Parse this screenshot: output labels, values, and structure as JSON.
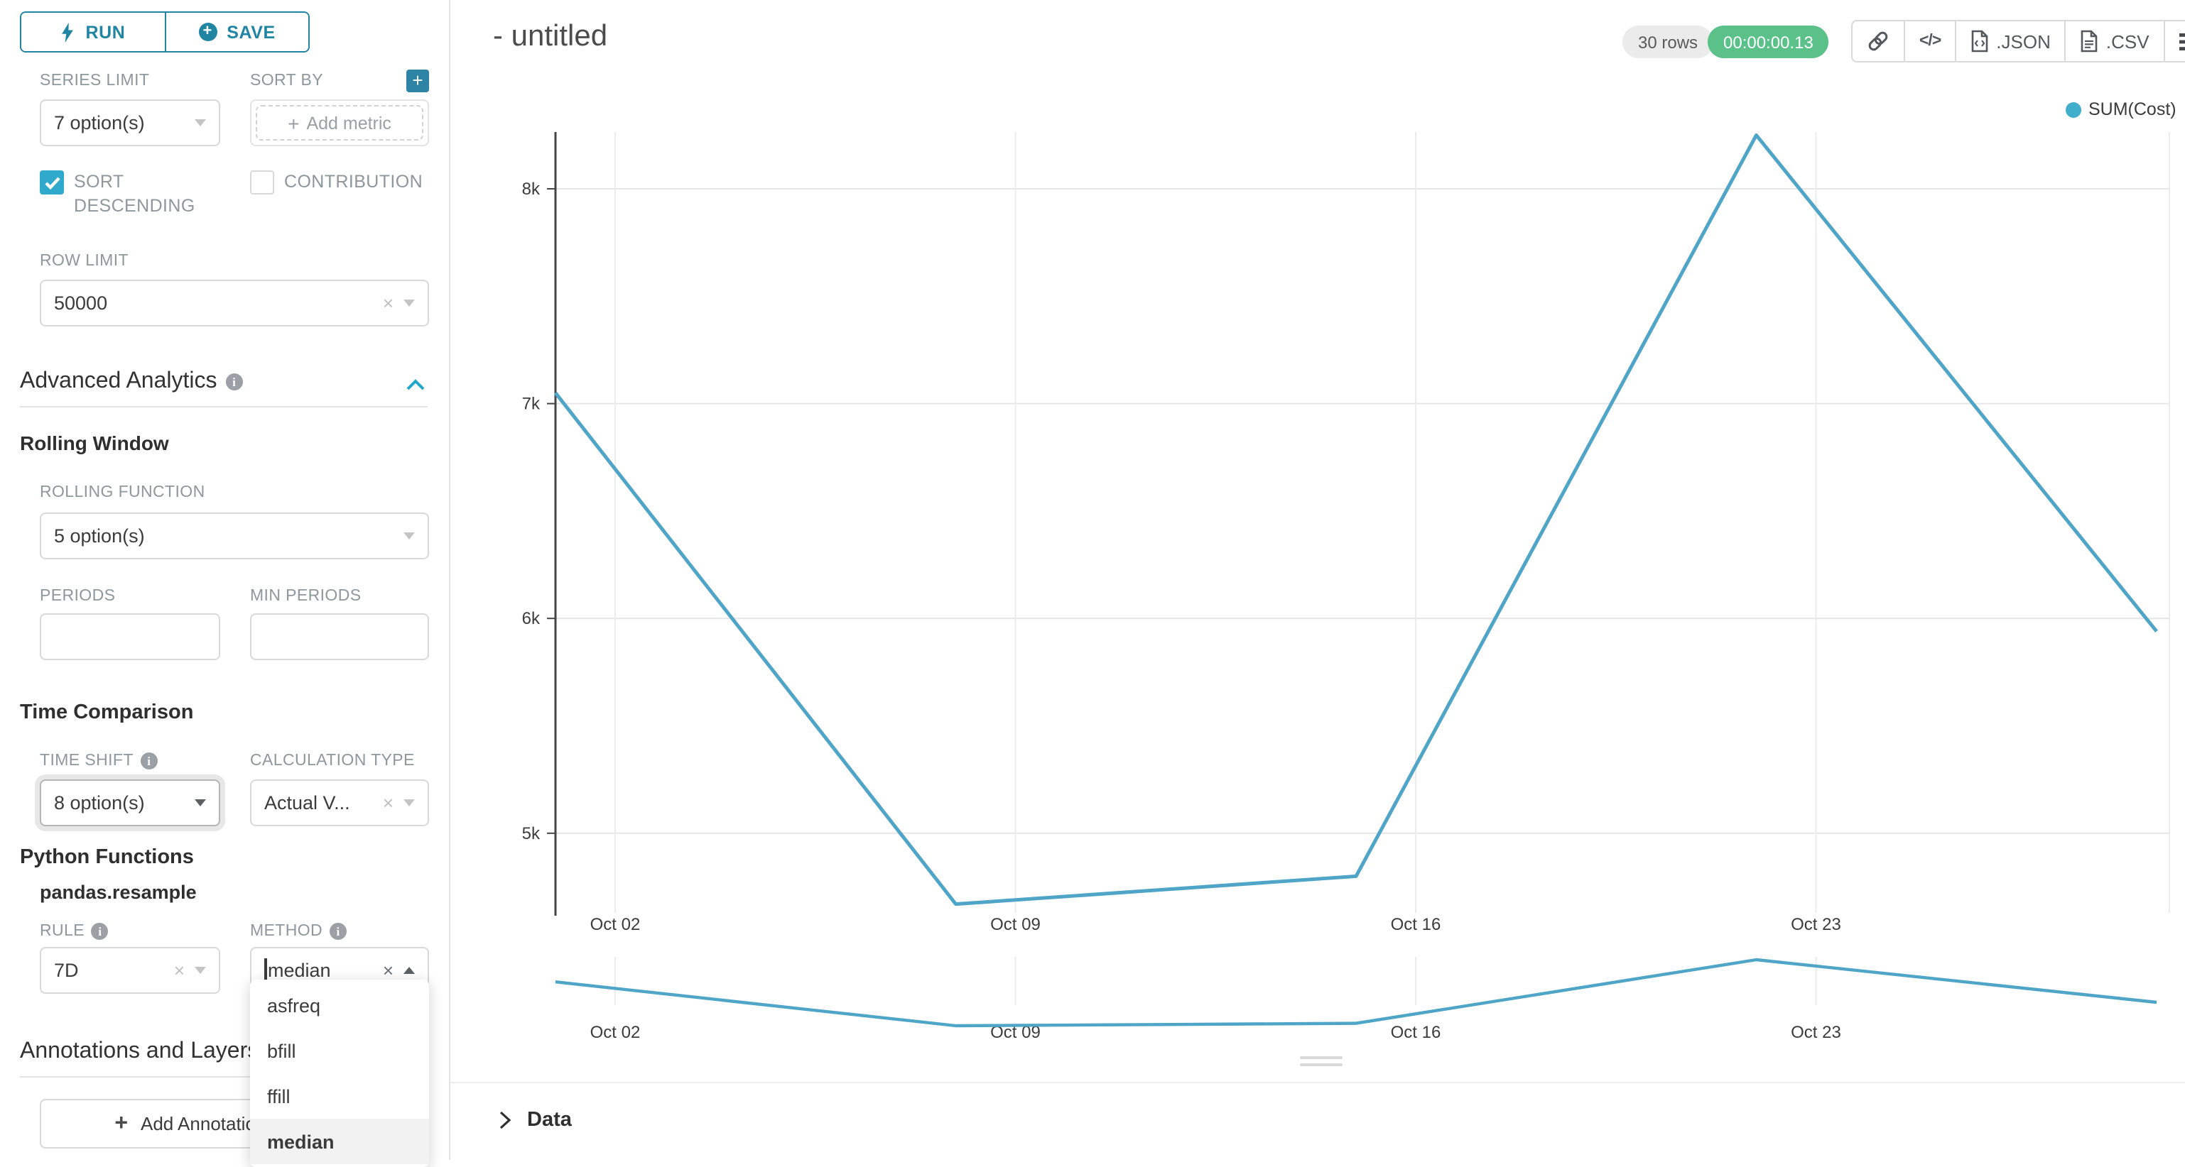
{
  "colors": {
    "primary_teal": "#1f85a2",
    "plus_button": "#2e84a4",
    "checkbox_checked": "#2fa9cc",
    "collapse_chevron": "#20a7c9",
    "timer_badge_bg": "#5ac189",
    "rows_badge_bg": "#ebebeb",
    "line_series": "#4fa5c7",
    "legend_dot": "#41aecb",
    "gridline": "#e6e6e6",
    "axis": "#454545"
  },
  "sidebar": {
    "run_button": "RUN",
    "save_button": "SAVE",
    "series_limit_label": "SERIES LIMIT",
    "series_limit_value": "7 option(s)",
    "sort_by_label": "SORT BY",
    "add_metric_placeholder": "Add metric",
    "sort_descending_label": "SORT DESCENDING",
    "contribution_label": "CONTRIBUTION",
    "row_limit_label": "ROW LIMIT",
    "row_limit_value": "50000",
    "advanced_analytics_title": "Advanced Analytics",
    "rolling_window_title": "Rolling Window",
    "rolling_function_label": "ROLLING FUNCTION",
    "rolling_function_value": "5 option(s)",
    "periods_label": "PERIODS",
    "min_periods_label": "MIN PERIODS",
    "time_comparison_title": "Time Comparison",
    "time_shift_label": "TIME SHIFT",
    "time_shift_value": "8 option(s)",
    "calculation_type_label": "CALCULATION TYPE",
    "calculation_type_value": "Actual V...",
    "python_functions_title": "Python Functions",
    "pandas_resample_label": "pandas.resample",
    "rule_label": "RULE",
    "rule_value": "7D",
    "method_label": "METHOD",
    "method_value": "median",
    "method_options": [
      "asfreq",
      "bfill",
      "ffill",
      "median"
    ],
    "method_selected_option": "median",
    "annotations_title": "Annotations and Layers",
    "add_annotation_button": "Add Annotation Layer"
  },
  "header": {
    "title": "- untitled",
    "rows_badge": "30 rows",
    "timer_badge": "00:00:00.13",
    "json_button": ".JSON",
    "csv_button": ".CSV"
  },
  "footer": {
    "data_section_label": "Data"
  },
  "chart_data": {
    "type": "line",
    "title": "",
    "legend": [
      {
        "name": "SUM(Cost)",
        "color": "#41aecb"
      }
    ],
    "legend_position": "top-right",
    "x_ticks": [
      "Oct 02",
      "Oct 09",
      "Oct 16",
      "Oct 23"
    ],
    "x_note": "5 weekly data points (7D resample); axis ticks sit slightly right of the data points; first point at plot left edge",
    "y_ticks": {
      "labels": [
        "8k",
        "7k",
        "6k",
        "5k"
      ],
      "values": [
        8000,
        7000,
        6000,
        5000
      ]
    },
    "ylim": [
      4500,
      8400
    ],
    "grid": true,
    "series": [
      {
        "name": "SUM(Cost)",
        "color": "#4fa5c7",
        "values": [
          7050,
          4670,
          4800,
          8250,
          5940
        ]
      }
    ],
    "mini_context_chart": {
      "enabled": true,
      "same_series": true
    }
  }
}
